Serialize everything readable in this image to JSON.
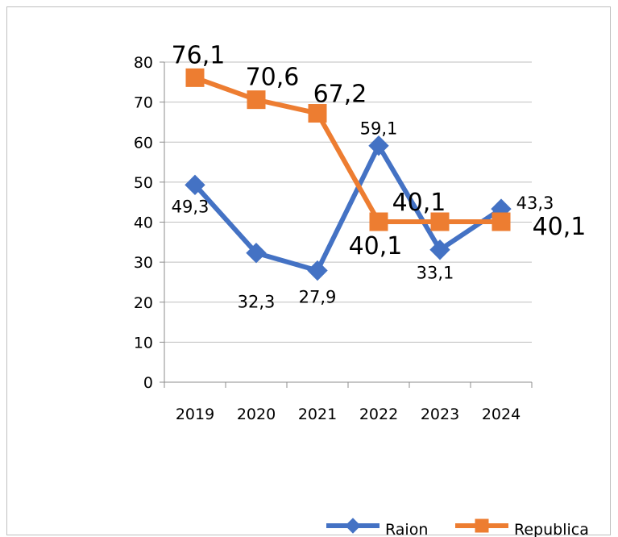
{
  "chart_data": {
    "type": "line",
    "categories": [
      "2019",
      "2020",
      "2021",
      "2022",
      "2023",
      "2024"
    ],
    "ylim": [
      0,
      80
    ],
    "yticks": [
      "0",
      "10",
      "20",
      "30",
      "40",
      "50",
      "60",
      "70",
      "80"
    ],
    "grid": true,
    "legend": "bottom-right",
    "series": [
      {
        "name": "Raion",
        "color": "#4472C4",
        "marker": "diamond",
        "values": [
          49.3,
          32.3,
          27.9,
          59.1,
          33.1,
          43.3
        ],
        "labels": [
          "49,3",
          "32,3",
          "27,9",
          "59,1",
          "33,1",
          "43,3"
        ]
      },
      {
        "name": "Republica",
        "color": "#ED7D31",
        "marker": "square",
        "values": [
          76.1,
          70.6,
          67.2,
          40.1,
          40.1,
          40.1
        ],
        "labels": [
          "76,1",
          "70,6",
          "67,2",
          "40,1",
          "40,1",
          "40,1"
        ]
      }
    ]
  }
}
